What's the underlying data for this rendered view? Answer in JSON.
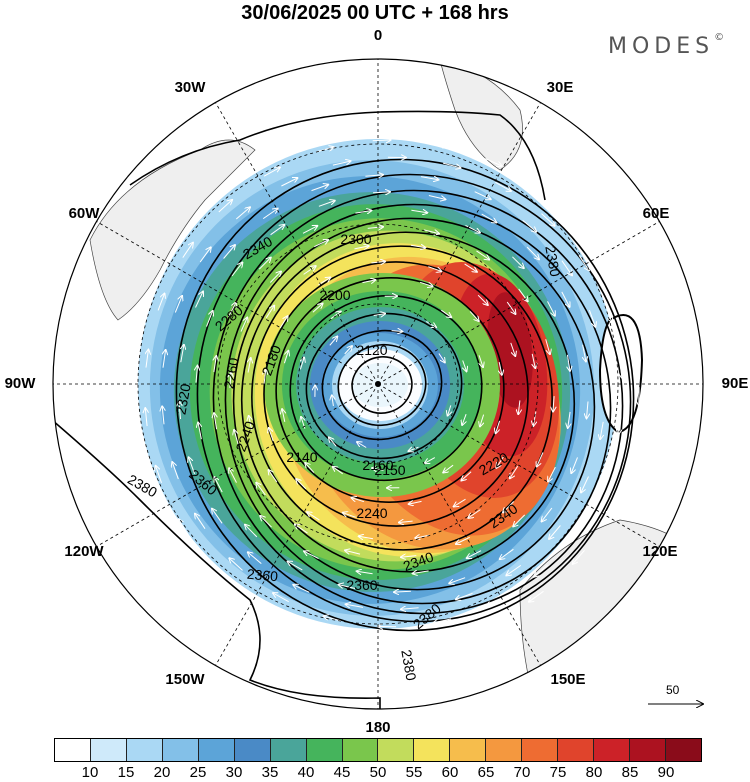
{
  "header": {
    "title": "30/06/2025  00 UTC  + 168 hrs",
    "brand": "MODES",
    "brand_mark": "©"
  },
  "map": {
    "projection": "polar stereographic",
    "hemisphere": "south",
    "longitude_labels": [
      "0",
      "30E",
      "60E",
      "90E",
      "120E",
      "150E",
      "180",
      "150W",
      "120W",
      "90W",
      "60W",
      "30W"
    ],
    "contour_labels": [
      "2120",
      "2140",
      "2150",
      "2160",
      "2180",
      "2200",
      "2220",
      "2240",
      "2240",
      "2260",
      "2280",
      "2300",
      "2320",
      "2340",
      "2340",
      "2340",
      "2360",
      "2360",
      "2360",
      "2380",
      "2380",
      "2380",
      "2380"
    ],
    "reference_vector": "50"
  },
  "colorbar": {
    "colors": [
      "#ffffff",
      "#cfeafa",
      "#aad8f4",
      "#83c0e8",
      "#5ca4d8",
      "#4a8ac6",
      "#4aa59a",
      "#45b45c",
      "#7ac64c",
      "#c2dc5c",
      "#f4e35c",
      "#f6bd4c",
      "#f4983f",
      "#ee6c32",
      "#e0442c",
      "#cc2228",
      "#ac1220",
      "#8a0c1a"
    ],
    "labels": [
      "10",
      "15",
      "20",
      "25",
      "30",
      "35",
      "40",
      "45",
      "50",
      "55",
      "60",
      "65",
      "70",
      "75",
      "80",
      "85",
      "90"
    ]
  },
  "colors": {
    "land": "#efefef",
    "contour": "#000000",
    "vectors": "#ffffff"
  }
}
